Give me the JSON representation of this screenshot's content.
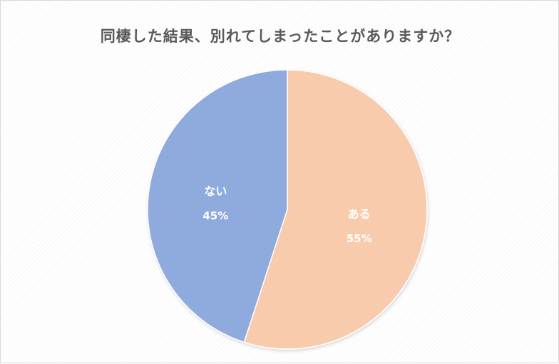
{
  "chart_data": {
    "type": "pie",
    "title": "同棲した結果、別れてしまったことがありますか？",
    "slices": [
      {
        "label": "ある",
        "value": 55,
        "value_label": "55%",
        "color": "#f8cbad"
      },
      {
        "label": "ない",
        "value": 45,
        "value_label": "45%",
        "color": "#8faadc"
      }
    ],
    "start_angle_deg": 0,
    "direction": "clockwise",
    "legend": "none"
  }
}
